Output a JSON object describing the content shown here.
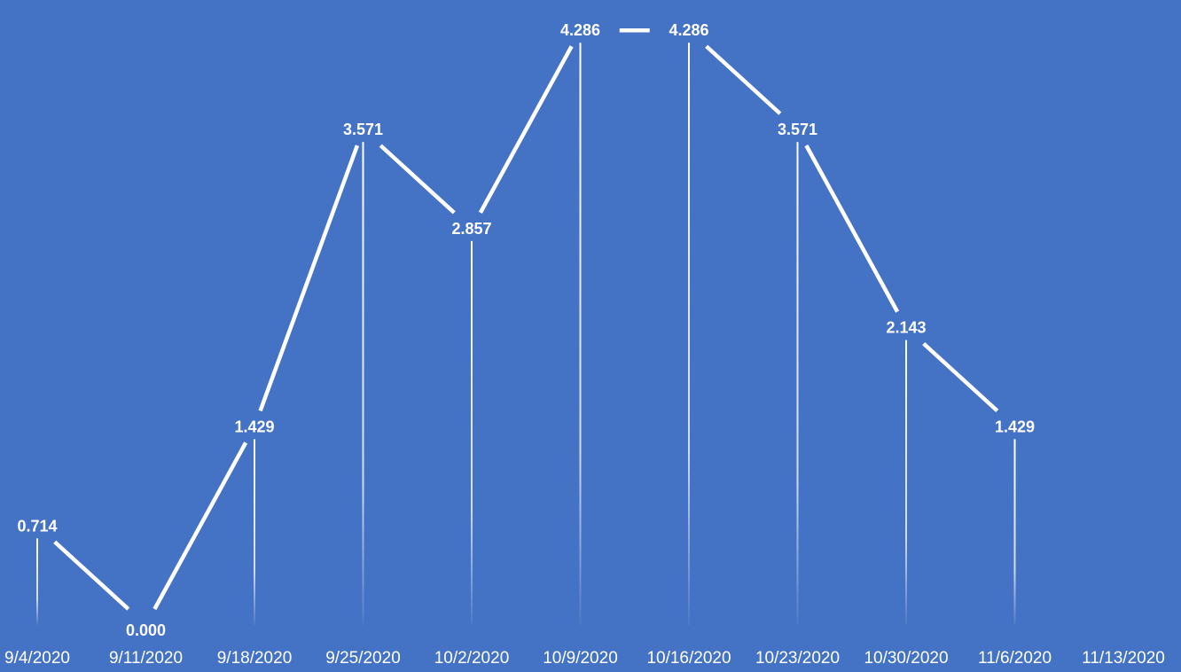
{
  "chart_data": {
    "type": "line",
    "categories": [
      "9/4/2020",
      "9/11/2020",
      "9/18/2020",
      "9/25/2020",
      "10/2/2020",
      "10/9/2020",
      "10/16/2020",
      "10/23/2020",
      "10/30/2020",
      "11/6/2020",
      "11/13/2020"
    ],
    "values": [
      0.714,
      0.0,
      1.429,
      3.571,
      2.857,
      4.286,
      4.286,
      3.571,
      2.143,
      1.429,
      null
    ],
    "data_labels": [
      "0.714",
      "0.000",
      "1.429",
      "3.571",
      "2.857",
      "4.286",
      "4.286",
      "3.571",
      "2.143",
      "1.429",
      ""
    ],
    "title": "",
    "xlabel": "",
    "ylabel": "",
    "ylim": [
      0,
      4.5
    ],
    "grid": false,
    "drop_lines": true,
    "colors": {
      "background": "#4472c4",
      "line": "#ffffff",
      "text": "#ffffff"
    }
  }
}
